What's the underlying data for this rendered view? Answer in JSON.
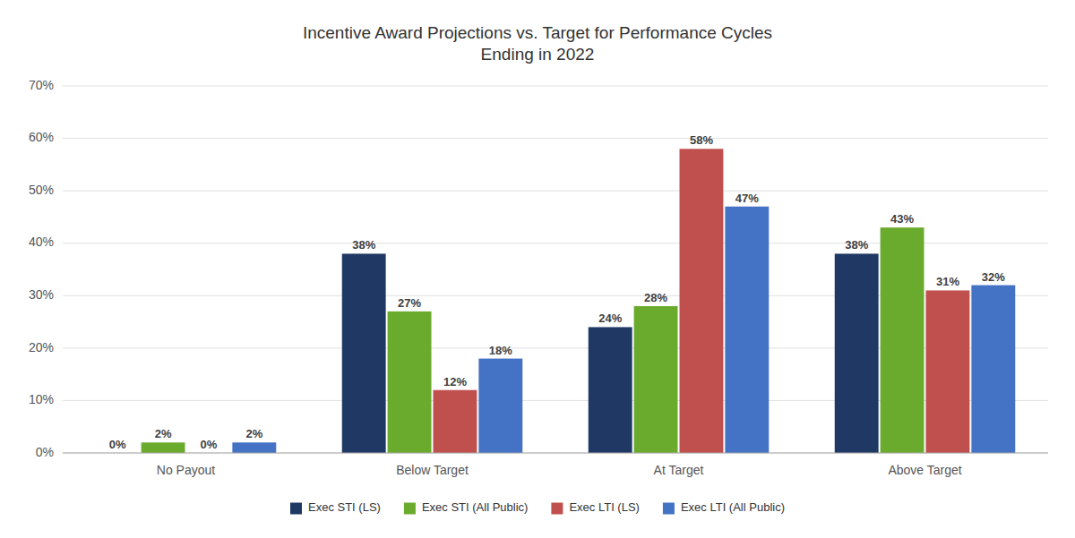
{
  "chart_data": {
    "type": "bar",
    "title": "Incentive Award Projections vs. Target for Performance Cycles\nEnding in 2022",
    "categories": [
      "No Payout",
      "Below Target",
      "At Target",
      "Above Target"
    ],
    "series": [
      {
        "name": "Exec STI (LS)",
        "color": "#1F3864",
        "values": [
          0,
          38,
          24,
          38
        ],
        "value_labels": [
          "0%",
          "38%",
          "24%",
          "38%"
        ]
      },
      {
        "name": "Exec STI (All Public)",
        "color": "#6AAB2E",
        "values": [
          2,
          27,
          28,
          43
        ],
        "value_labels": [
          "2%",
          "27%",
          "28%",
          "43%"
        ]
      },
      {
        "name": "Exec LTI (LS)",
        "color": "#C0504D",
        "values": [
          0,
          12,
          58,
          31
        ],
        "value_labels": [
          "0%",
          "12%",
          "58%",
          "31%"
        ]
      },
      {
        "name": "Exec LTI (All Public)",
        "color": "#4472C4",
        "values": [
          2,
          18,
          47,
          32
        ],
        "value_labels": [
          "2%",
          "18%",
          "47%",
          "32%"
        ]
      }
    ],
    "ylim": [
      0,
      70
    ],
    "yticks": [
      {
        "value": 0,
        "label": "0%"
      },
      {
        "value": 10,
        "label": "10%"
      },
      {
        "value": 20,
        "label": "20%"
      },
      {
        "value": 30,
        "label": "30%"
      },
      {
        "value": 40,
        "label": "40%"
      },
      {
        "value": 50,
        "label": "50%"
      },
      {
        "value": 60,
        "label": "60%"
      },
      {
        "value": 70,
        "label": "70%"
      }
    ],
    "grid": true,
    "legend": "bottom",
    "data_labels": true
  }
}
